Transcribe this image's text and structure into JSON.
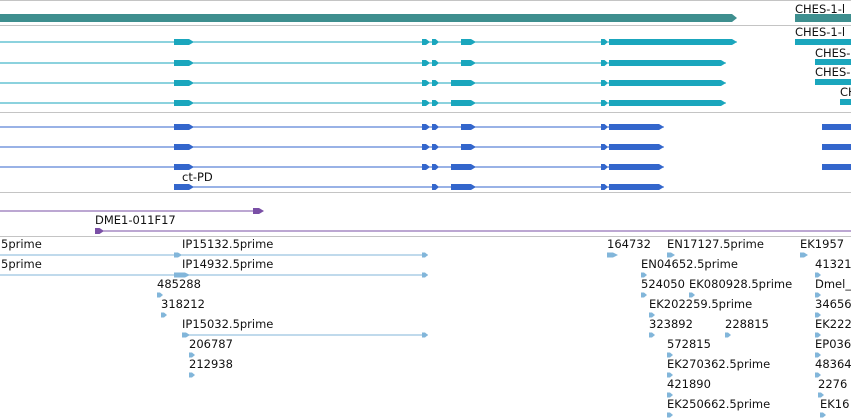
{
  "colors": {
    "gene_model": "#3e8f8f",
    "transcript_cyan": "#1aa6bd",
    "transcript_blue": "#3366cc",
    "clone": "#7a4fa6",
    "est": "#82b6da",
    "divider": "#c4c4c4"
  },
  "tracks": {
    "transcript_label": "ct-PD",
    "clone_label": "DME1-011F17",
    "right_edge_labels": [
      "CHES-1-l",
      "CHES-1-l",
      "CHES-",
      "CHES-",
      "CH"
    ],
    "est_labels": [
      "5prime",
      "5prime",
      "IP15132.5prime",
      "IP14932.5prime",
      "485288",
      "318212",
      "IP15032.5prime",
      "206787",
      "212938",
      "164732",
      "EN17127.5prime",
      "EN04652.5prime",
      "524050",
      "EK080928.5prime",
      "EK202259.5prime",
      "323892",
      "228815",
      "572815",
      "EK270362.5prime",
      "421890",
      "EK250662.5prime",
      "EK1957",
      "41321",
      "Dmel_",
      "34656",
      "EK222",
      "EP036",
      "48364",
      "2276",
      "EK16"
    ]
  }
}
